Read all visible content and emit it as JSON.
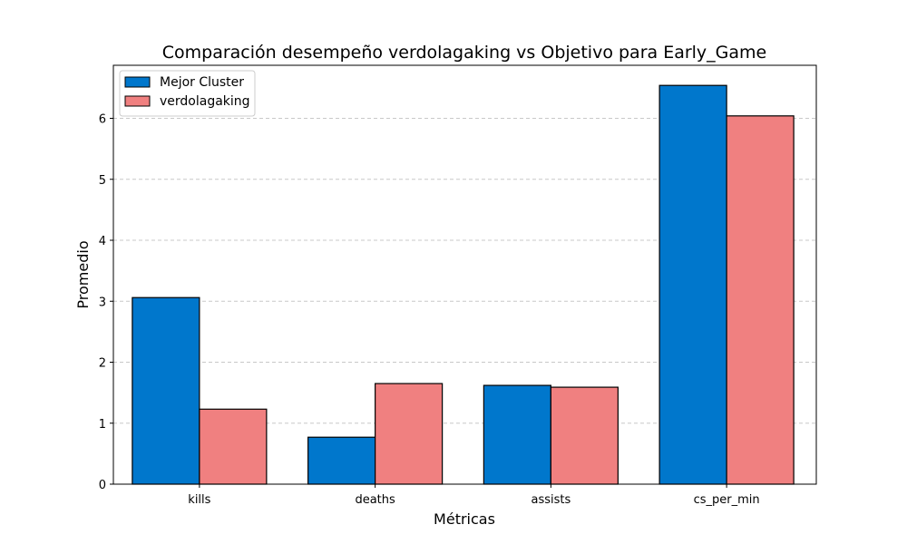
{
  "chart_data": {
    "type": "bar",
    "title": "Comparación desempeño verdolagaking vs Objetivo para Early_Game",
    "xlabel": "Métricas",
    "ylabel": "Promedio",
    "categories": [
      "kills",
      "deaths",
      "assists",
      "cs_per_min"
    ],
    "series": [
      {
        "name": "Mejor Cluster",
        "color": "#0077cc",
        "values": [
          3.06,
          0.77,
          1.62,
          6.54
        ]
      },
      {
        "name": "verdolagaking",
        "color": "#f08080",
        "values": [
          1.23,
          1.65,
          1.59,
          6.04
        ]
      }
    ],
    "ylim": [
      0,
      6.87
    ],
    "yticks": [
      0,
      1,
      2,
      3,
      4,
      5,
      6
    ],
    "grid": "y-dashed",
    "legend_position": "top-left"
  }
}
